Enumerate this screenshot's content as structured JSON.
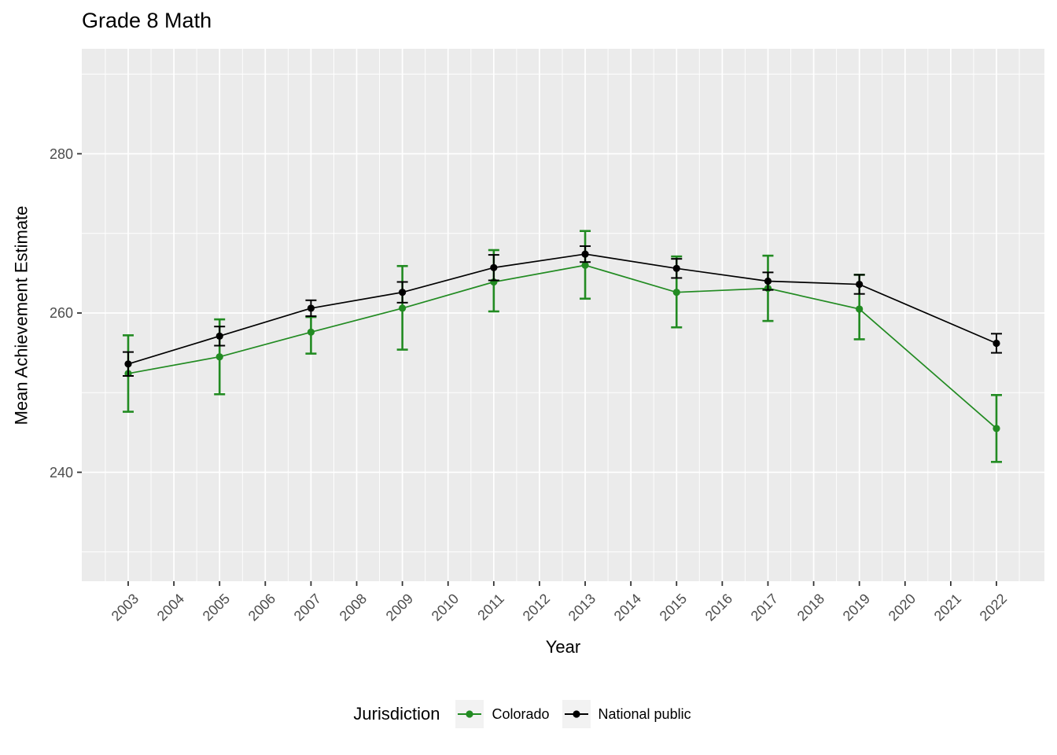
{
  "chart_data": {
    "type": "line",
    "title": "Grade 8 Math",
    "xlabel": "Year",
    "ylabel": "Mean Achievement Estimate",
    "x_ticks": [
      2003,
      2004,
      2005,
      2006,
      2007,
      2008,
      2009,
      2010,
      2011,
      2012,
      2013,
      2014,
      2015,
      2016,
      2017,
      2018,
      2019,
      2020,
      2021,
      2022
    ],
    "y_ticks": [
      240,
      260,
      280
    ],
    "y_minor_gridlines": [
      230,
      250,
      270,
      290
    ],
    "xlim": [
      2002.0,
      2023.1
    ],
    "ylim": [
      226.3,
      293.2
    ],
    "grid": true,
    "plot_background": "#EBEBEB",
    "gridline_color": "#FFFFFF",
    "tick_mark_color": "#333333",
    "tick_label_color": "#4d4d4d",
    "legend": {
      "title": "Jurisdiction",
      "position": "bottom",
      "key_background": "#F2F2F2"
    },
    "series": [
      {
        "name": "Colorado",
        "color": "#228B22",
        "x": [
          2003,
          2005,
          2007,
          2009,
          2011,
          2013,
          2015,
          2017,
          2019,
          2022
        ],
        "values": [
          252.4,
          254.5,
          257.6,
          260.6,
          263.9,
          266.0,
          262.6,
          263.1,
          260.5,
          245.5
        ],
        "ci_low": [
          247.6,
          249.8,
          254.9,
          255.4,
          260.2,
          261.8,
          258.2,
          259.0,
          256.7,
          241.3
        ],
        "ci_high": [
          257.2,
          259.2,
          259.5,
          265.9,
          267.9,
          270.3,
          267.1,
          267.2,
          264.8,
          249.7
        ]
      },
      {
        "name": "National public",
        "color": "#000000",
        "x": [
          2003,
          2005,
          2007,
          2009,
          2011,
          2013,
          2015,
          2017,
          2019,
          2022
        ],
        "values": [
          253.6,
          257.1,
          260.6,
          262.6,
          265.7,
          267.4,
          265.6,
          264.0,
          263.6,
          256.2
        ],
        "ci_low": [
          252.1,
          255.9,
          259.6,
          261.3,
          264.1,
          266.4,
          264.4,
          262.9,
          262.4,
          255.0
        ],
        "ci_high": [
          255.1,
          258.3,
          261.6,
          263.9,
          267.3,
          268.4,
          266.8,
          265.1,
          264.8,
          257.4
        ]
      }
    ]
  }
}
